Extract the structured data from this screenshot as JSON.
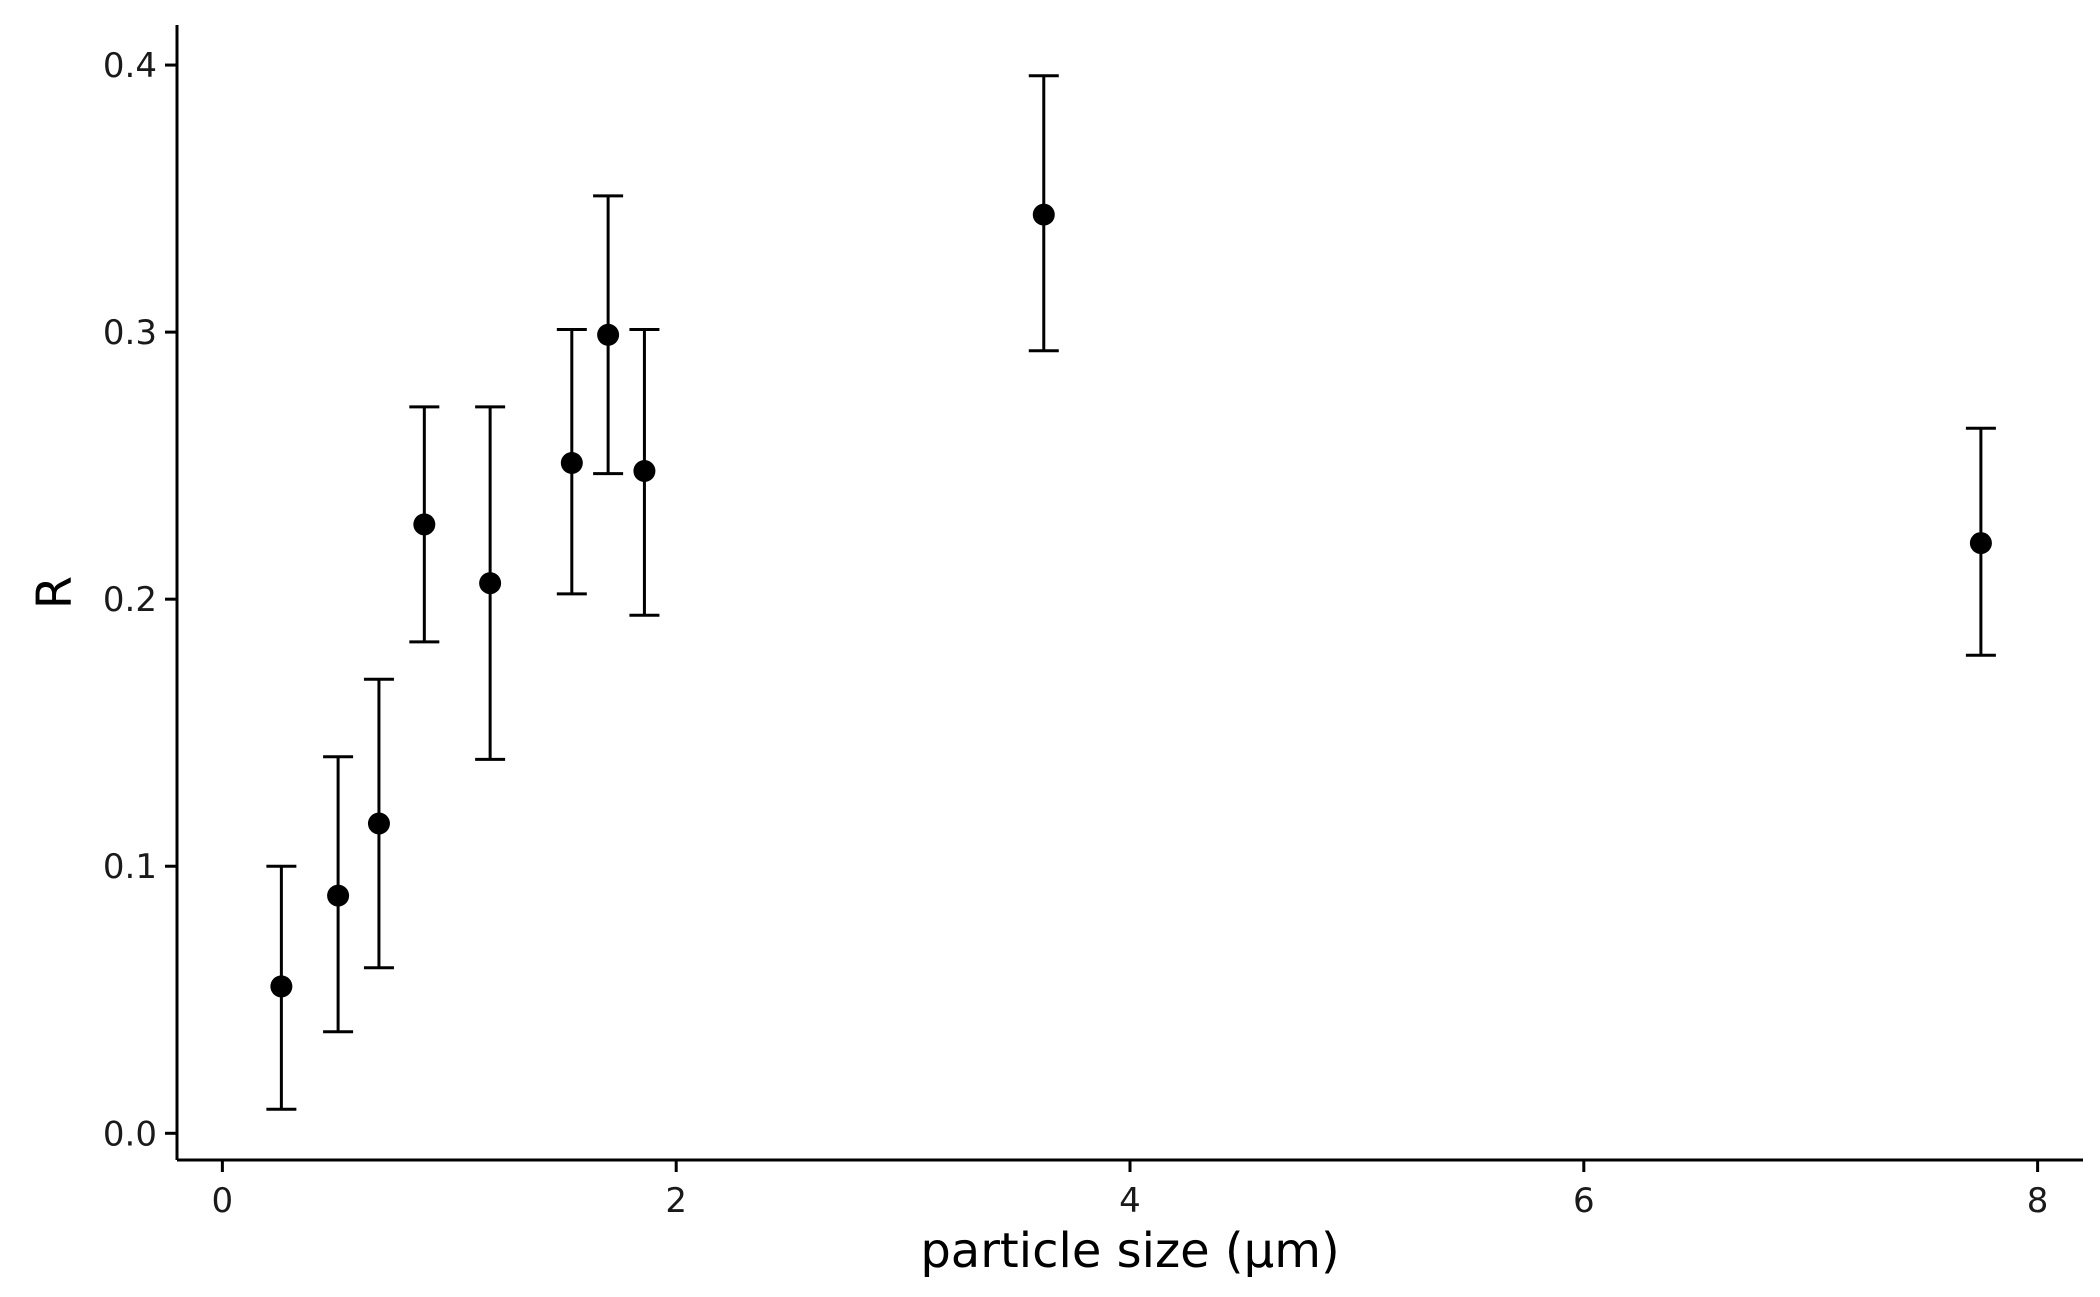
{
  "chart_data": {
    "type": "scatter",
    "title": "",
    "xlabel": "particle size (µm)",
    "ylabel": "R",
    "xlim": [
      -0.2,
      8.2
    ],
    "ylim": [
      -0.01,
      0.415
    ],
    "x_ticks": [
      0,
      2,
      4,
      6,
      8
    ],
    "x_tick_labels": [
      "0",
      "2",
      "4",
      "6",
      "8"
    ],
    "y_ticks": [
      0.0,
      0.1,
      0.2,
      0.3,
      0.4
    ],
    "y_tick_labels": [
      "0.0",
      "0.1",
      "0.2",
      "0.3",
      "0.4"
    ],
    "grid": false,
    "legend": null,
    "series": [
      {
        "name": "R",
        "color": "#000000",
        "points": [
          {
            "x": 0.26,
            "y": 0.055,
            "ymin": 0.009,
            "ymax": 0.1
          },
          {
            "x": 0.51,
            "y": 0.089,
            "ymin": 0.038,
            "ymax": 0.141
          },
          {
            "x": 0.69,
            "y": 0.116,
            "ymin": 0.062,
            "ymax": 0.17
          },
          {
            "x": 0.89,
            "y": 0.228,
            "ymin": 0.184,
            "ymax": 0.272
          },
          {
            "x": 1.18,
            "y": 0.206,
            "ymin": 0.14,
            "ymax": 0.272
          },
          {
            "x": 1.54,
            "y": 0.251,
            "ymin": 0.202,
            "ymax": 0.301
          },
          {
            "x": 1.7,
            "y": 0.299,
            "ymin": 0.247,
            "ymax": 0.351
          },
          {
            "x": 1.86,
            "y": 0.248,
            "ymin": 0.194,
            "ymax": 0.301
          },
          {
            "x": 3.62,
            "y": 0.344,
            "ymin": 0.293,
            "ymax": 0.396
          },
          {
            "x": 7.75,
            "y": 0.221,
            "ymin": 0.179,
            "ymax": 0.264
          }
        ]
      }
    ]
  }
}
